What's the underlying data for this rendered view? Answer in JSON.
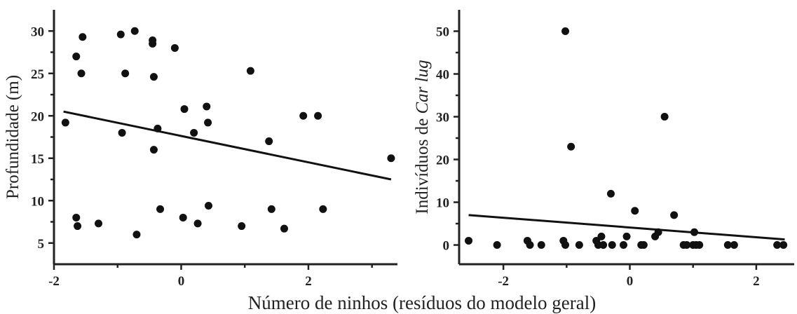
{
  "xlabel": "Número de ninhos (resíduos do modelo geral)",
  "chart_data": [
    {
      "type": "scatter",
      "title": "",
      "xlabel": "Número de ninhos (resíduos do modelo geral)",
      "ylabel": "Profundidade (m)",
      "xlim": [
        -2.0,
        3.4
      ],
      "ylim": [
        2.5,
        32.5
      ],
      "xticks": [
        -2,
        0,
        2
      ],
      "yticks": [
        5,
        10,
        15,
        20,
        25,
        30
      ],
      "points": [
        {
          "x": -1.82,
          "y": 19.2
        },
        {
          "x": -1.65,
          "y": 27.0
        },
        {
          "x": -1.57,
          "y": 25.0
        },
        {
          "x": -1.55,
          "y": 29.3
        },
        {
          "x": -1.65,
          "y": 8.0
        },
        {
          "x": -1.63,
          "y": 7.0
        },
        {
          "x": -1.3,
          "y": 7.3
        },
        {
          "x": -0.95,
          "y": 29.6
        },
        {
          "x": -0.93,
          "y": 18.0
        },
        {
          "x": -0.88,
          "y": 25.0
        },
        {
          "x": -0.73,
          "y": 30.0
        },
        {
          "x": -0.7,
          "y": 6.0
        },
        {
          "x": -0.45,
          "y": 28.9
        },
        {
          "x": -0.45,
          "y": 28.5
        },
        {
          "x": -0.43,
          "y": 24.6
        },
        {
          "x": -0.43,
          "y": 16.0
        },
        {
          "x": -0.37,
          "y": 18.5
        },
        {
          "x": -0.33,
          "y": 9.0
        },
        {
          "x": -0.1,
          "y": 28.0
        },
        {
          "x": 0.03,
          "y": 8.0
        },
        {
          "x": 0.05,
          "y": 20.8
        },
        {
          "x": 0.2,
          "y": 18.0
        },
        {
          "x": 0.26,
          "y": 7.3
        },
        {
          "x": 0.4,
          "y": 21.1
        },
        {
          "x": 0.42,
          "y": 19.2
        },
        {
          "x": 0.43,
          "y": 9.4
        },
        {
          "x": 0.95,
          "y": 7.0
        },
        {
          "x": 1.09,
          "y": 25.3
        },
        {
          "x": 1.38,
          "y": 17.0
        },
        {
          "x": 1.42,
          "y": 9.0
        },
        {
          "x": 1.62,
          "y": 6.7
        },
        {
          "x": 1.92,
          "y": 20.0
        },
        {
          "x": 2.15,
          "y": 20.0
        },
        {
          "x": 2.23,
          "y": 9.0
        },
        {
          "x": 3.3,
          "y": 15.0
        }
      ],
      "fit_line": {
        "x": [
          -1.85,
          3.3
        ],
        "y": [
          20.5,
          12.5
        ]
      }
    },
    {
      "type": "scatter",
      "title": "",
      "xlabel": "Número de ninhos (resíduos do modelo geral)",
      "ylabel_prefix": "Indivíduos de ",
      "ylabel_italic": "Car lug",
      "xlim": [
        -2.7,
        2.6
      ],
      "ylim": [
        -4.5,
        55
      ],
      "xticks": [
        -2,
        0,
        2
      ],
      "yticks": [
        0,
        10,
        20,
        30,
        40,
        50
      ],
      "points": [
        {
          "x": -2.55,
          "y": 1
        },
        {
          "x": -2.1,
          "y": 0
        },
        {
          "x": -1.62,
          "y": 1
        },
        {
          "x": -1.58,
          "y": 0
        },
        {
          "x": -1.4,
          "y": 0
        },
        {
          "x": -1.05,
          "y": 1
        },
        {
          "x": -1.02,
          "y": 0
        },
        {
          "x": -1.02,
          "y": 50
        },
        {
          "x": -0.93,
          "y": 23
        },
        {
          "x": -0.8,
          "y": 0
        },
        {
          "x": -0.53,
          "y": 1
        },
        {
          "x": -0.5,
          "y": 0
        },
        {
          "x": -0.45,
          "y": 2
        },
        {
          "x": -0.42,
          "y": 0
        },
        {
          "x": -0.3,
          "y": 12
        },
        {
          "x": -0.28,
          "y": 0
        },
        {
          "x": -0.1,
          "y": 0
        },
        {
          "x": -0.05,
          "y": 2
        },
        {
          "x": 0.08,
          "y": 8
        },
        {
          "x": 0.18,
          "y": 0
        },
        {
          "x": 0.22,
          "y": 0
        },
        {
          "x": 0.4,
          "y": 2
        },
        {
          "x": 0.45,
          "y": 3
        },
        {
          "x": 0.55,
          "y": 30
        },
        {
          "x": 0.7,
          "y": 7
        },
        {
          "x": 0.85,
          "y": 0
        },
        {
          "x": 0.9,
          "y": 0
        },
        {
          "x": 1.0,
          "y": 0
        },
        {
          "x": 1.02,
          "y": 3
        },
        {
          "x": 1.05,
          "y": 0
        },
        {
          "x": 1.1,
          "y": 0
        },
        {
          "x": 1.55,
          "y": 0
        },
        {
          "x": 1.65,
          "y": 0
        },
        {
          "x": 2.33,
          "y": 0
        },
        {
          "x": 2.43,
          "y": 0
        }
      ],
      "fit_line": {
        "x": [
          -2.55,
          2.45
        ],
        "y": [
          7.0,
          1.3
        ]
      }
    }
  ]
}
